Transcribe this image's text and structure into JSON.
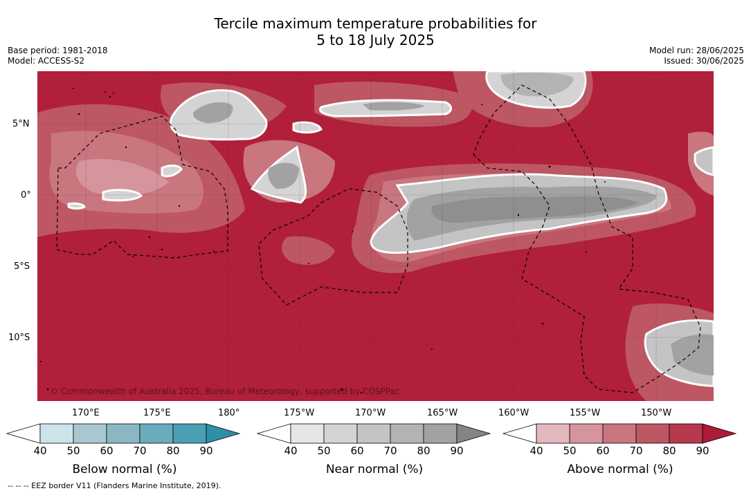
{
  "header": {
    "title_line1": "Tercile maximum temperature probabilities for",
    "title_line2": "5 to 18 July 2025",
    "base_period": "Base period: 1981-2018",
    "model": "Model: ACCESS-S2",
    "model_run": "Model run: 28/06/2025",
    "issued": "Issued: 30/06/2025"
  },
  "map": {
    "lat_labels": [
      "5°N",
      "0°",
      "5°S",
      "10°S"
    ],
    "lon_labels": [
      "170°E",
      "175°E",
      "180°",
      "175°W",
      "170°W",
      "165°W",
      "160°W",
      "155°W",
      "150°W"
    ],
    "copyright": "© Commonwealth of Australia 2025, Bureau of Meteorology, supported by COSPPac",
    "colors": {
      "above_dominant": "#b11f3a",
      "near_dominant": "#8f8f8f",
      "boundary": "#ffffff"
    }
  },
  "colorbars": [
    {
      "label": "Below normal (%)",
      "ticks": [
        "40",
        "50",
        "60",
        "70",
        "80",
        "90"
      ],
      "colors": [
        "#ffffff",
        "#cce3ea",
        "#a9c7ce",
        "#8ab7c3",
        "#6aacbd",
        "#4aa0b2",
        "#2f8fa6"
      ]
    },
    {
      "label": "Near normal (%)",
      "ticks": [
        "40",
        "50",
        "60",
        "70",
        "80",
        "90"
      ],
      "colors": [
        "#ffffff",
        "#e6e6e6",
        "#d4d4d4",
        "#c4c4c4",
        "#b3b3b3",
        "#a2a2a2",
        "#848484"
      ]
    },
    {
      "label": "Above normal (%)",
      "ticks": [
        "40",
        "50",
        "60",
        "70",
        "80",
        "90"
      ],
      "colors": [
        "#ffffff",
        "#e3b8be",
        "#d6949c",
        "#c9767f",
        "#bd5763",
        "#b8384d",
        "#ac1b38"
      ]
    }
  ],
  "footer": {
    "legend_note": "--  --  -- EEZ border V11 (Flanders Marine Institute, 2019)."
  }
}
